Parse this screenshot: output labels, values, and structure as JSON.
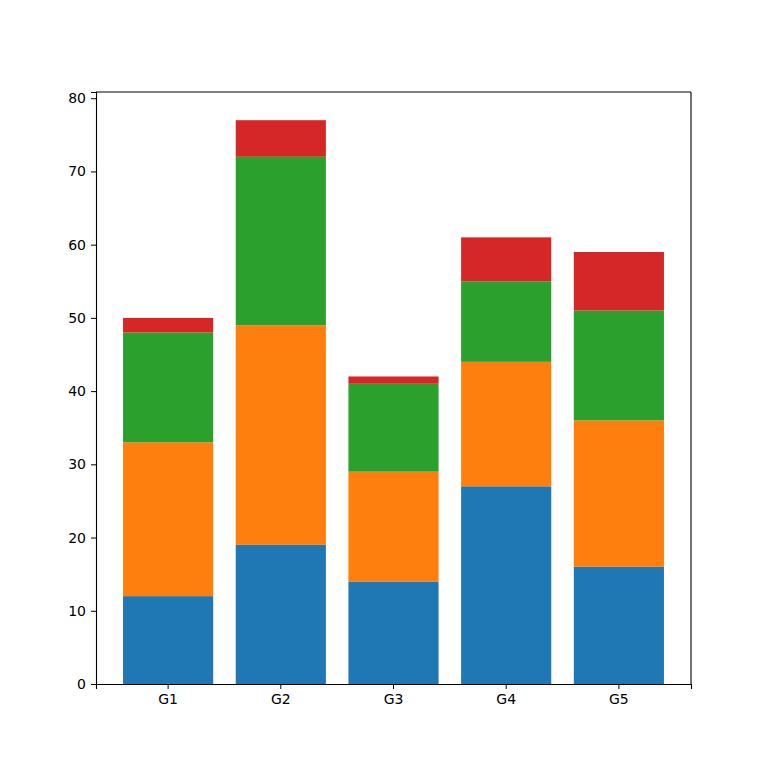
{
  "chart_data": {
    "type": "bar",
    "stacked": true,
    "categories": [
      "G1",
      "G2",
      "G3",
      "G4",
      "G5"
    ],
    "series": [
      {
        "color": "#1f77b4",
        "values": [
          12,
          19,
          14,
          27,
          16
        ]
      },
      {
        "color": "#ff7f0e",
        "values": [
          21,
          30,
          15,
          17,
          20
        ]
      },
      {
        "color": "#2ca02c",
        "values": [
          15,
          23,
          12,
          11,
          15
        ]
      },
      {
        "color": "#d62728",
        "values": [
          2,
          5,
          1,
          6,
          8
        ]
      }
    ],
    "ylim": [
      0,
      80.85
    ],
    "yticks": [
      0,
      10,
      20,
      30,
      40,
      50,
      60,
      70,
      80
    ]
  }
}
